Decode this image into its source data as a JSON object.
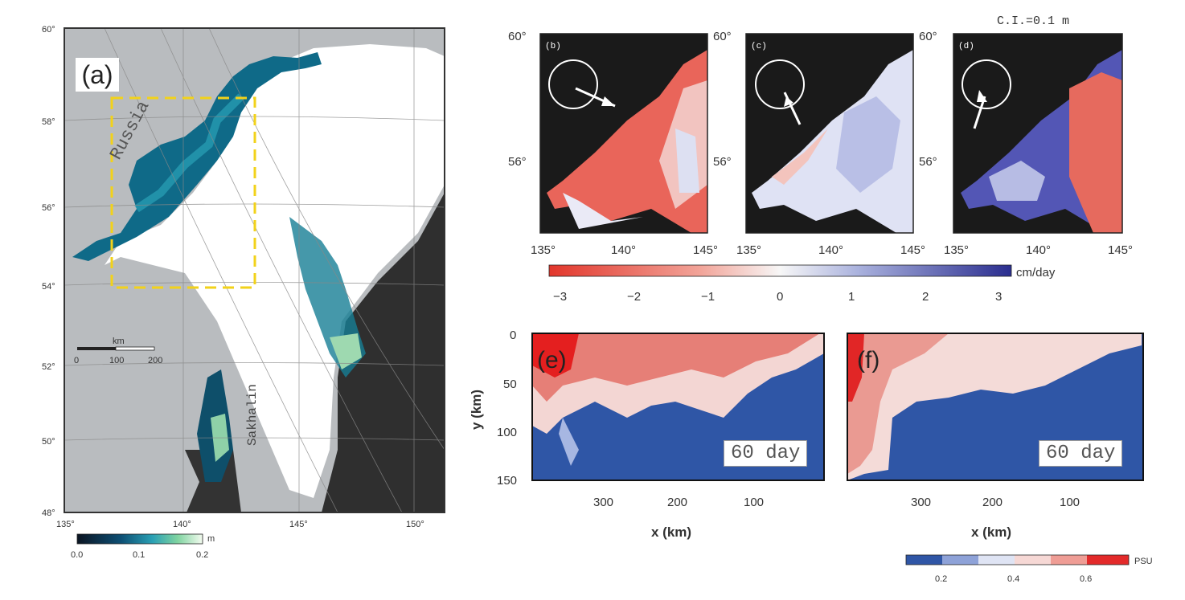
{
  "panel_a": {
    "label": "(a)",
    "lat_labels": [
      "60°",
      "58°",
      "56°",
      "54°",
      "52°",
      "50°",
      "48°"
    ],
    "lon_labels": [
      "135°",
      "140°",
      "145°",
      "150°"
    ],
    "place_russia": "Russia",
    "place_sakhalin": "Sakhalin",
    "scale_unit": "km",
    "scale_ticks": [
      "0",
      "100",
      "200"
    ],
    "colorbar_unit": "m",
    "colorbar_ticks": [
      "0.0",
      "0.1",
      "0.2"
    ],
    "colors": {
      "land": "#b9bcbf",
      "ice": "#ffffff",
      "open_water": "#2b2b2b",
      "highlight_box": "#f2d21a"
    }
  },
  "panels_bcd": {
    "contour_interval": "C.I.=0.1 m",
    "labels": [
      "(b)",
      "(c)",
      "(d)"
    ],
    "lat_labels": [
      "60°",
      "56°"
    ],
    "lon_labels": [
      "135°",
      "140°",
      "145°"
    ],
    "colorbar_unit": "cm/day",
    "colorbar_ticks": [
      "−3",
      "−2",
      "−1",
      "0",
      "1",
      "2",
      "3"
    ],
    "colorbar_range": [
      -3,
      3
    ]
  },
  "panels_ef": {
    "labels": [
      "(e)",
      "(f)"
    ],
    "day_label": "60 day",
    "ylabel": "y (km)",
    "xlabel": "x (km)",
    "y_ticks": [
      "0",
      "50",
      "100",
      "150"
    ],
    "x_ticks": [
      "300",
      "200",
      "100"
    ],
    "colorbar_unit": "PSU",
    "colorbar_ticks": [
      "0.2",
      "0.4",
      "0.6"
    ]
  }
}
